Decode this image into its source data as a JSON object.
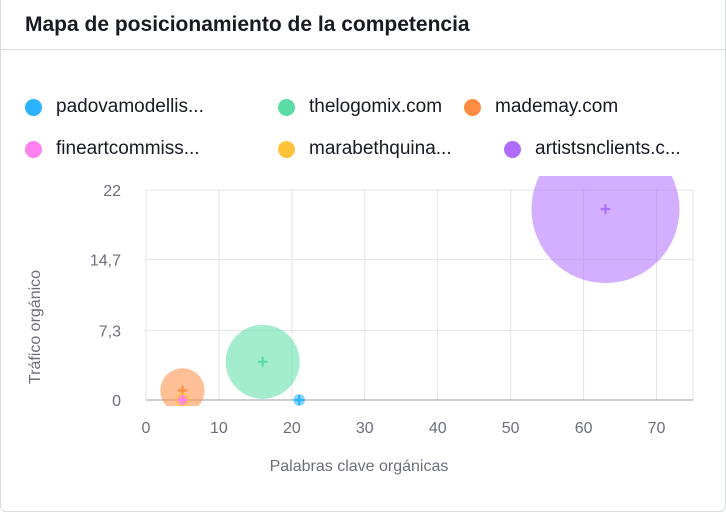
{
  "card": {
    "title": "Mapa de posicionamiento de la competencia"
  },
  "chart_data": {
    "type": "scatter",
    "title": "Mapa de posicionamiento de la competencia",
    "xlabel": "Palabras clave orgánicas",
    "ylabel": "Tráfico orgánico",
    "xlim": [
      0,
      75
    ],
    "ylim": [
      0,
      22
    ],
    "x_ticks": [
      "0",
      "10",
      "20",
      "30",
      "40",
      "50",
      "60",
      "70"
    ],
    "x_tick_values": [
      0,
      10,
      20,
      30,
      40,
      50,
      60,
      70
    ],
    "y_ticks": [
      "0",
      "7,3",
      "14,7",
      "22"
    ],
    "y_tick_values": [
      0,
      7.3,
      14.7,
      22
    ],
    "grid": true,
    "legend_placement": "top-left",
    "series": [
      {
        "name": "padovamodellis...",
        "color": "#2bb3ff",
        "x": 21,
        "y": 0,
        "bubble_size": 0.08
      },
      {
        "name": "thelogomix.com",
        "color": "#59dca5",
        "x": 16,
        "y": 4,
        "bubble_size": 0.5
      },
      {
        "name": "mademay.com",
        "color": "#ff8c42",
        "x": 5,
        "y": 1,
        "bubble_size": 0.3
      },
      {
        "name": "fineartcommiss...",
        "color": "#ff80ef",
        "x": 5,
        "y": 0,
        "bubble_size": 0.05
      },
      {
        "name": "marabethquina...",
        "color": "#ffc33a",
        "x": 5,
        "y": 0,
        "bubble_size": 0.1
      },
      {
        "name": "artistsnclients.c...",
        "color": "#b06cff",
        "x": 63,
        "y": 20,
        "bubble_size": 1.0
      }
    ]
  }
}
